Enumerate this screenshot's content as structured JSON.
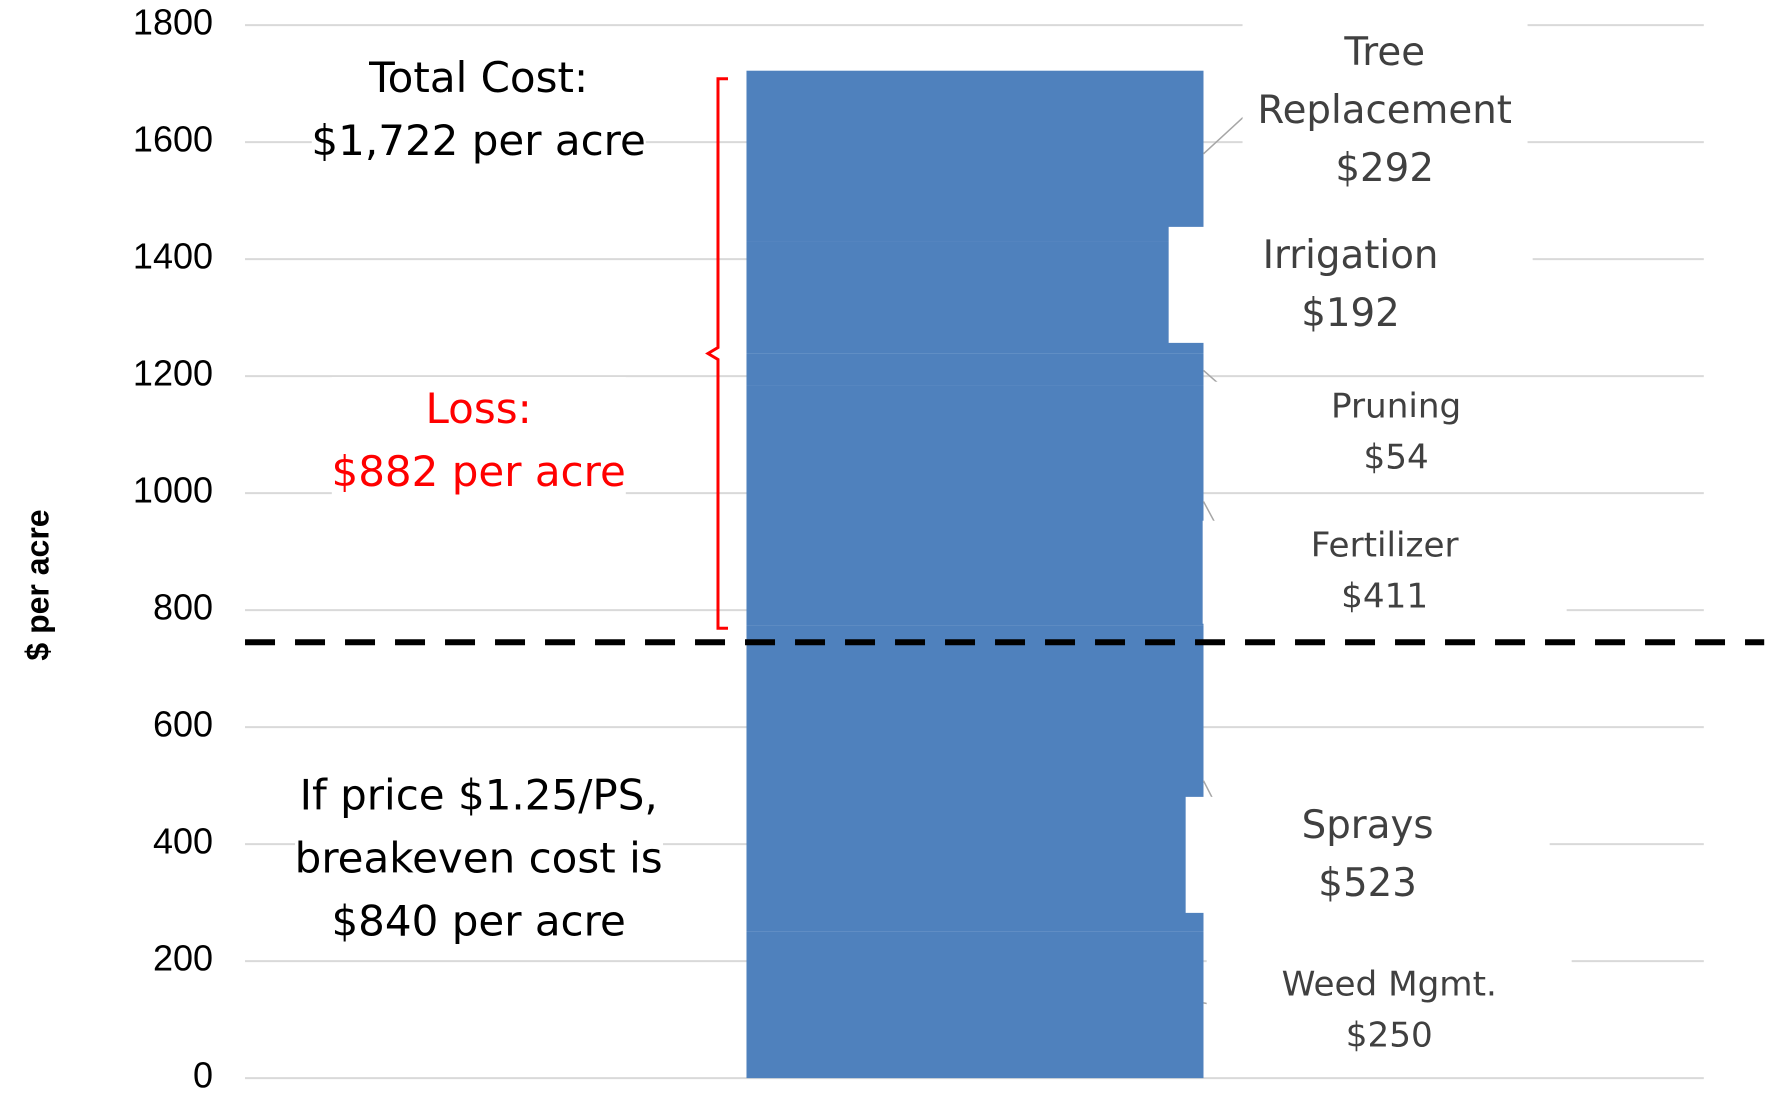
{
  "chart_data": {
    "type": "stacked-bar",
    "y_label": "$ per acre",
    "categories": [
      null
    ],
    "color": "#4f81bd",
    "series": [
      {
        "name": "Weed Mgmt.",
        "values": [
          250
        ],
        "value_labels": [
          "$250"
        ]
      },
      {
        "name": "Sprays",
        "values": [
          523
        ],
        "value_labels": [
          "$523"
        ]
      },
      {
        "name": "Fertilizer",
        "values": [
          411
        ],
        "value_labels": [
          "$411"
        ]
      },
      {
        "name": "Pruning",
        "values": [
          54
        ],
        "value_labels": [
          "$54"
        ]
      },
      {
        "name": "Irrigation",
        "values": [
          192
        ],
        "value_labels": [
          "$192"
        ]
      },
      {
        "name": "Tree Replacement",
        "values": [
          292
        ],
        "value_labels": [
          "$292"
        ]
      }
    ],
    "ylim": [
      0,
      1800
    ],
    "yticks": [
      0,
      200,
      400,
      600,
      800,
      1000,
      1200,
      1400,
      1600,
      1800
    ],
    "grid": true,
    "reference_line": 745,
    "annotations": [
      {
        "lines": [
          "Total Cost:",
          "$1,722 per acre"
        ],
        "color": "#000000"
      },
      {
        "lines": [
          "Loss:",
          "$882 per acre"
        ],
        "color": "#ff0000"
      },
      {
        "lines": [
          "If price $1.25/PS,",
          "breakeven cost is",
          "$840 per acre"
        ],
        "color": "#000000"
      }
    ]
  }
}
